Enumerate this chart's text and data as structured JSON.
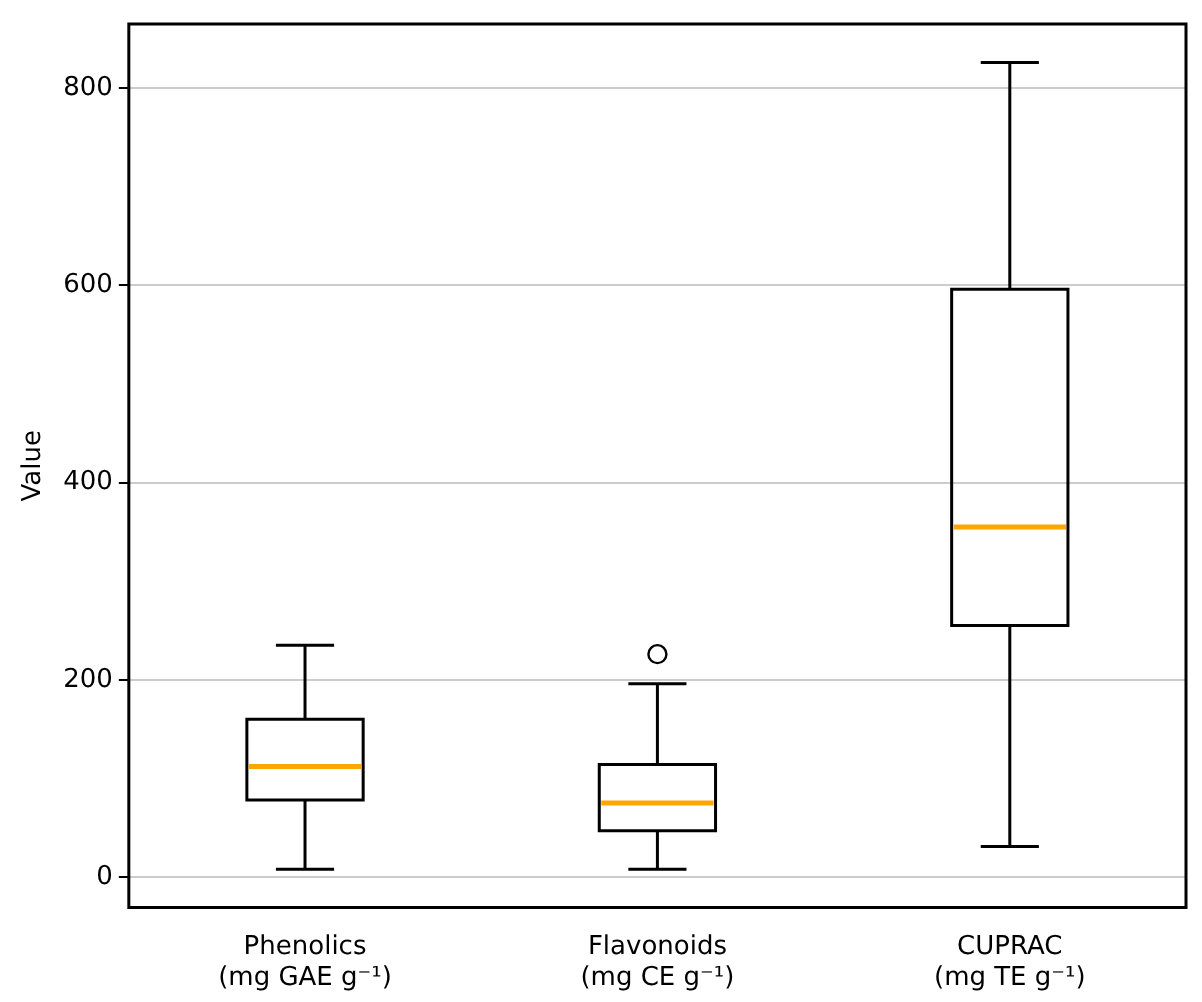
{
  "chart_data": {
    "type": "box",
    "ylabel": "Value",
    "categories": [
      "Phenolics\n(mg GAE g⁻¹)",
      "Flavonoids\n(mg CE g⁻¹)",
      "CUPRAC\n(mg TE g⁻¹)"
    ],
    "boxes": [
      {
        "low": 8,
        "q1": 78,
        "median": 112,
        "q3": 160,
        "high": 235
      },
      {
        "low": 8,
        "q1": 47,
        "median": 75,
        "q3": 114,
        "high": 196,
        "outliers": [
          226
        ]
      },
      {
        "low": 31,
        "q1": 255,
        "median": 355,
        "q3": 596,
        "high": 826
      }
    ],
    "color": "#000000",
    "ylim": [
      -31,
      865
    ],
    "yticks": [
      0,
      200,
      400,
      600,
      800
    ],
    "grid": "y",
    "legend": false
  }
}
